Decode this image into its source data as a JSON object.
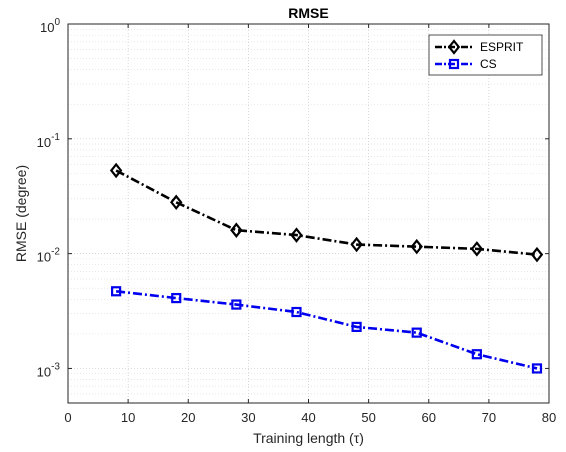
{
  "chart_data": {
    "type": "line",
    "title": "RMSE",
    "xlabel": "Training length (τ)",
    "ylabel": "RMSE (degree)",
    "xlim": [
      0,
      80
    ],
    "ylim": [
      0.0005,
      1
    ],
    "yscale": "log",
    "grid": true,
    "legend_position": "top-right",
    "xticks": [
      0,
      10,
      20,
      30,
      40,
      50,
      60,
      70,
      80
    ],
    "xtick_labels": [
      "0",
      "10",
      "20",
      "30",
      "40",
      "50",
      "60",
      "70",
      "80"
    ],
    "yticks": [
      {
        "value": 1,
        "base": "10",
        "exp": "0"
      },
      {
        "value": 0.1,
        "base": "10",
        "exp": "-1"
      },
      {
        "value": 0.01,
        "base": "10",
        "exp": "-2"
      },
      {
        "value": 0.001,
        "base": "10",
        "exp": "-3"
      }
    ],
    "x": [
      8,
      18,
      28,
      38,
      48,
      58,
      68,
      78
    ],
    "series": [
      {
        "name": "ESPRIT",
        "color": "#000000",
        "marker": "diamond",
        "values": [
          0.053,
          0.028,
          0.016,
          0.0145,
          0.012,
          0.0115,
          0.011,
          0.0098
        ]
      },
      {
        "name": "CS",
        "color": "#0000ee",
        "marker": "square",
        "values": [
          0.0047,
          0.0041,
          0.0036,
          0.0031,
          0.0023,
          0.00205,
          0.00133,
          0.001
        ]
      }
    ]
  }
}
